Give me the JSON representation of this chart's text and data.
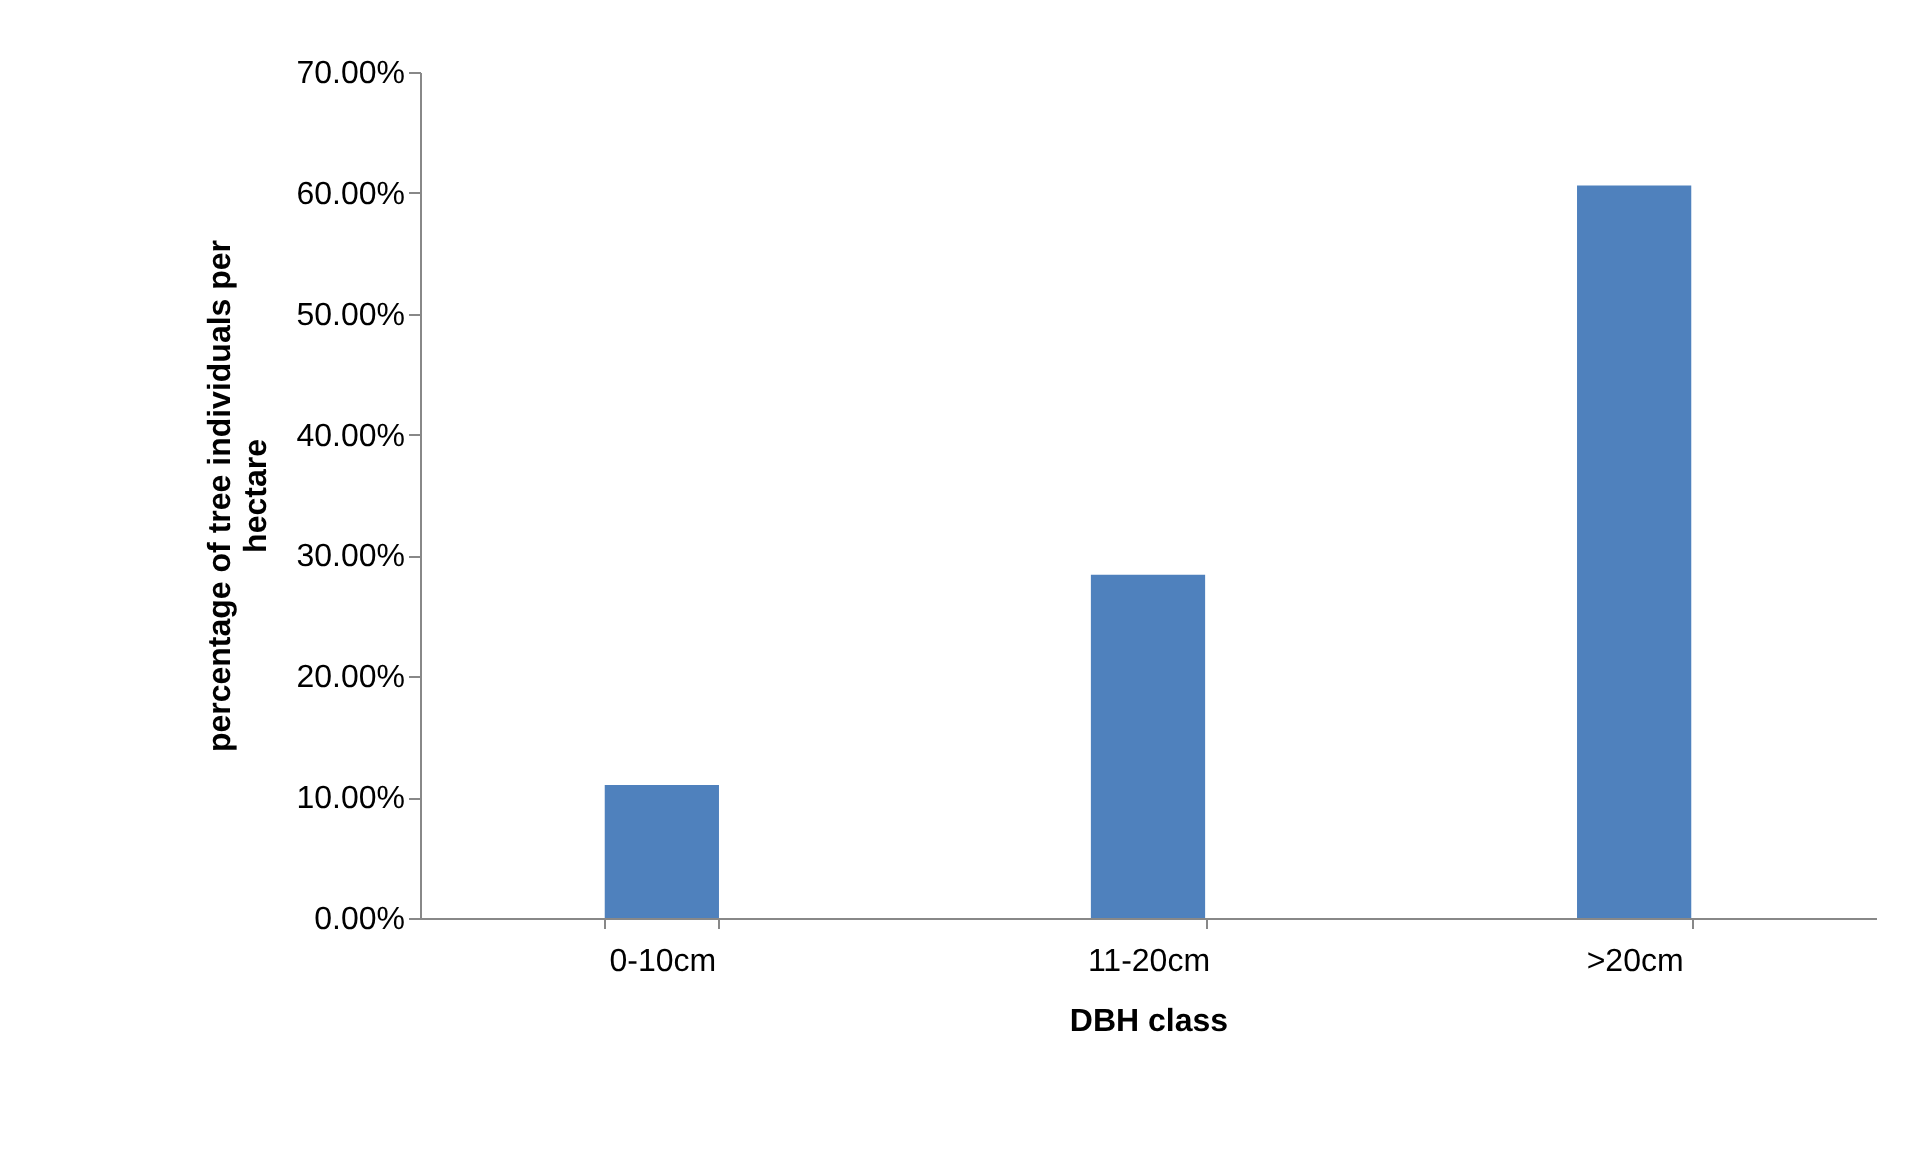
{
  "chart_data": {
    "type": "bar",
    "xlabel": "DBH class",
    "ylabel": "percentage of tree individuals per hectare",
    "categories": [
      "0-10cm",
      "11-20cm",
      ">20cm"
    ],
    "values": [
      11.0,
      28.4,
      60.6
    ],
    "color": "#4f81bd",
    "ylim": [
      0,
      70
    ],
    "yticks": [
      {
        "value": 0,
        "label": "0.00%"
      },
      {
        "value": 10,
        "label": "10.00%"
      },
      {
        "value": 20,
        "label": "20.00%"
      },
      {
        "value": 30,
        "label": "30.00%"
      },
      {
        "value": 40,
        "label": "40.00%"
      },
      {
        "value": 50,
        "label": "50.00%"
      },
      {
        "value": 60,
        "label": "60.00%"
      },
      {
        "value": 70,
        "label": "70.00%"
      }
    ],
    "grid": false,
    "legend": false
  }
}
